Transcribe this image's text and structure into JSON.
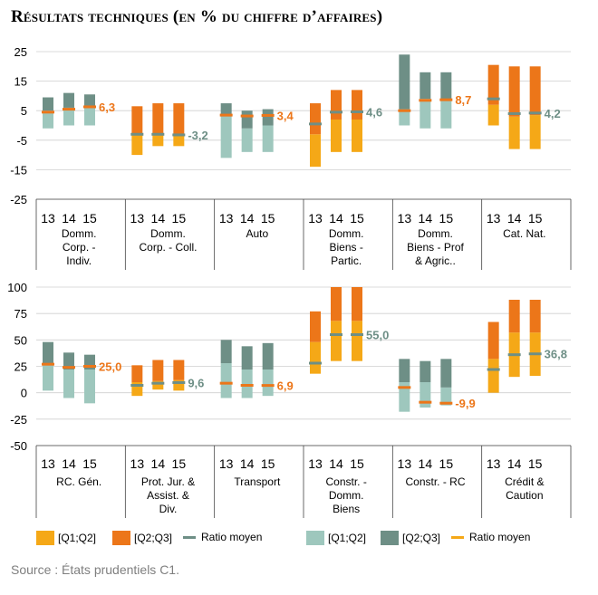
{
  "title": "Résultats techniques (en % du chiffre d’affaires)",
  "source": "Source : États prudentiels C1.",
  "colors": {
    "orange_light": "#f5a817",
    "orange_dark": "#ec7619",
    "teal_light": "#9ec7bd",
    "teal_dark": "#6e8f86",
    "mean_teal": "#6e8f86",
    "mean_orange": "#ec7619",
    "label_teal": "#6e8f86",
    "label_orange": "#ec7619"
  },
  "legend": {
    "orange_q1q2": "[Q1;Q2]",
    "orange_q2q3": "[Q2;Q3]",
    "orange_mean": "Ratio moyen",
    "teal_q1q2": "[Q1;Q2]",
    "teal_q2q3": "[Q2;Q3]",
    "teal_mean": "Ratio moyen"
  },
  "chart_data": [
    {
      "type": "bar",
      "subtype": "floating quartile boxes with mean markers",
      "yticks": [
        "25",
        "15",
        "5",
        "-5",
        "-15",
        "-25"
      ],
      "ylim": [
        -25,
        25
      ],
      "groups": [
        {
          "label": "Domm.\nCorp. -\nIndiv.",
          "years": [
            "13",
            "14",
            "15"
          ],
          "palette": "teal",
          "q1": [
            -1,
            0,
            0
          ],
          "q2": [
            5,
            6,
            6
          ],
          "q3": [
            9.5,
            11,
            10.5
          ],
          "mean": [
            4.5,
            5.5,
            6.3
          ],
          "value_label": "6,3"
        },
        {
          "label": "Domm.\nCorp. - Coll.",
          "years": [
            "13",
            "14",
            "15"
          ],
          "palette": "orange",
          "q1": [
            -10,
            -7,
            -7
          ],
          "q2": [
            -3,
            -3,
            -3.5
          ],
          "q3": [
            6.5,
            7.5,
            7.5
          ],
          "mean": [
            -3,
            -3,
            -3.2
          ],
          "value_label": "-3,2"
        },
        {
          "label": "Auto",
          "years": [
            "13",
            "14",
            "15"
          ],
          "palette": "teal",
          "q1": [
            -11,
            -9,
            -9
          ],
          "q2": [
            3,
            -1,
            0
          ],
          "q3": [
            7.5,
            5,
            5.5
          ],
          "mean": [
            3.5,
            3.2,
            3.4
          ],
          "value_label": "3,4"
        },
        {
          "label": "Domm.\nBiens -\nPartic.",
          "years": [
            "13",
            "14",
            "15"
          ],
          "palette": "orange",
          "q1": [
            -14,
            -9,
            -9
          ],
          "q2": [
            -3,
            2,
            2
          ],
          "q3": [
            7.5,
            12,
            12
          ],
          "mean": [
            0.5,
            4.5,
            4.6
          ],
          "value_label": "4,6"
        },
        {
          "label": "Domm.\nBiens - Prof\n& Agric..",
          "years": [
            "13",
            "14",
            "15"
          ],
          "palette": "teal",
          "q1": [
            0,
            -1,
            -1
          ],
          "q2": [
            5.5,
            9,
            9
          ],
          "q3": [
            24,
            18,
            18
          ],
          "mean": [
            5,
            8.5,
            8.7
          ],
          "value_label": "8,7"
        },
        {
          "label": "Cat. Nat.",
          "years": [
            "13",
            "14",
            "15"
          ],
          "palette": "orange",
          "q1": [
            0,
            -8,
            -8
          ],
          "q2": [
            7,
            3,
            3.5
          ],
          "q3": [
            20.5,
            20,
            20
          ],
          "mean": [
            9,
            4,
            4.2
          ],
          "value_label": "4,2"
        }
      ]
    },
    {
      "type": "bar",
      "subtype": "floating quartile boxes with mean markers",
      "yticks": [
        "100",
        "75",
        "50",
        "25",
        "0",
        "-25",
        "-50"
      ],
      "ylim": [
        -50,
        100
      ],
      "groups": [
        {
          "label": "RC. Gén.",
          "years": [
            "13",
            "14",
            "15"
          ],
          "palette": "teal",
          "q1": [
            2,
            -5,
            -10
          ],
          "q2": [
            28,
            22,
            22
          ],
          "q3": [
            48,
            38,
            36
          ],
          "mean": [
            27,
            24,
            25.0
          ],
          "value_label": "25,0"
        },
        {
          "label": "Prot. Jur. &\nAssist. &\nDiv.",
          "years": [
            "13",
            "14",
            "15"
          ],
          "palette": "orange",
          "q1": [
            -3,
            3,
            2
          ],
          "q2": [
            10,
            11,
            12
          ],
          "q3": [
            26,
            31,
            31
          ],
          "mean": [
            7,
            9,
            9.6
          ],
          "value_label": "9,6"
        },
        {
          "label": "Transport",
          "years": [
            "13",
            "14",
            "15"
          ],
          "palette": "teal",
          "q1": [
            -5,
            -5,
            -3
          ],
          "q2": [
            28,
            22,
            22
          ],
          "q3": [
            50,
            44,
            47
          ],
          "mean": [
            9,
            7,
            6.9
          ],
          "value_label": "6,9"
        },
        {
          "label": "Constr. -\nDomm.\nBiens",
          "years": [
            "13",
            "14",
            "15"
          ],
          "palette": "orange",
          "q1": [
            18,
            30,
            30
          ],
          "q2": [
            48,
            68,
            68
          ],
          "q3": [
            77,
            100,
            100
          ],
          "mean": [
            28,
            55,
            55.0
          ],
          "value_label": "55,0"
        },
        {
          "label": "Constr. - RC",
          "years": [
            "13",
            "14",
            "15"
          ],
          "palette": "teal",
          "q1": [
            -18,
            -14,
            -12
          ],
          "q2": [
            10,
            10,
            5
          ],
          "q3": [
            32,
            30,
            32
          ],
          "mean": [
            5,
            -9,
            -9.9
          ],
          "value_label": "-9,9"
        },
        {
          "label": "Crédit &\nCaution",
          "years": [
            "13",
            "14",
            "15"
          ],
          "palette": "orange",
          "q1": [
            0,
            15,
            16
          ],
          "q2": [
            32,
            57,
            57
          ],
          "q3": [
            67,
            88,
            88
          ],
          "mean": [
            22,
            36,
            36.8
          ],
          "value_label": "36,8"
        }
      ]
    }
  ]
}
